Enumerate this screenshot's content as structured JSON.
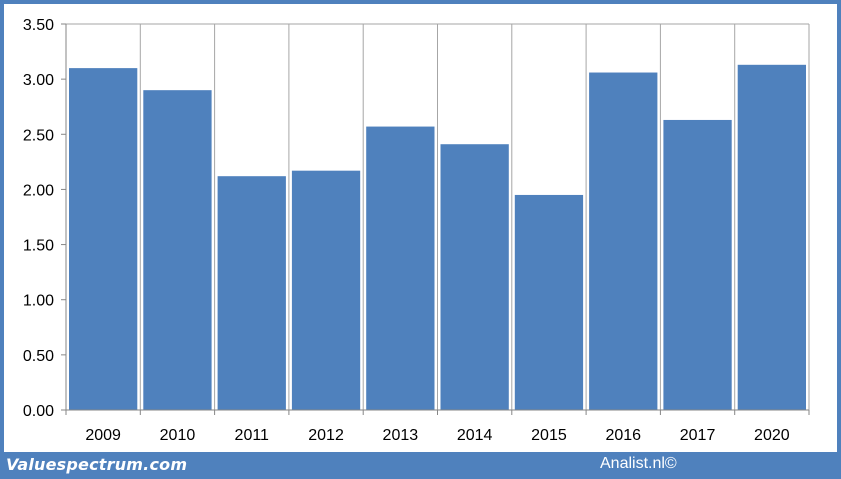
{
  "chart_data": {
    "type": "bar",
    "categories": [
      "2009",
      "2010",
      "2011",
      "2012",
      "2013",
      "2014",
      "2015",
      "2016",
      "2017",
      "2020"
    ],
    "values": [
      3.1,
      2.9,
      2.12,
      2.17,
      2.57,
      2.41,
      1.95,
      3.06,
      2.63,
      3.13
    ],
    "ylim": [
      0,
      3.5
    ],
    "yticks": [
      "0.00",
      "0.50",
      "1.00",
      "1.50",
      "2.00",
      "2.50",
      "3.00",
      "3.50"
    ],
    "title": "",
    "xlabel": "",
    "ylabel": "",
    "grid": "vertical separators between categories",
    "bar_color": "#4f81bd",
    "legend": "none"
  },
  "footer": {
    "left_text": "Valuespectrum.com",
    "right_text": "Analist.nl©"
  },
  "colors": {
    "frame": "#4f81bd",
    "background": "#ffffff",
    "grid": "#a6a6a6"
  }
}
